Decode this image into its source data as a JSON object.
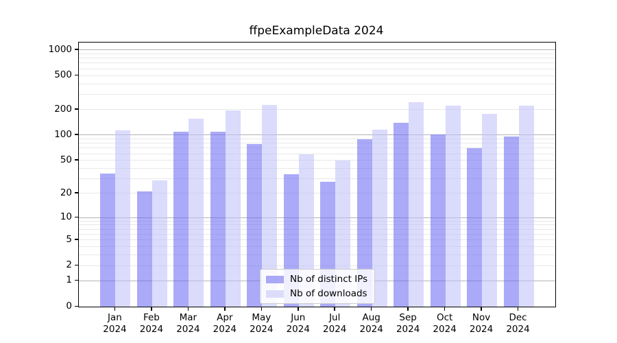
{
  "chart_data": {
    "type": "bar",
    "title": "ffpeExampleData 2024",
    "categories": [
      "Jan",
      "Feb",
      "Mar",
      "Apr",
      "May",
      "Jun",
      "Jul",
      "Aug",
      "Sep",
      "Oct",
      "Nov",
      "Dec"
    ],
    "x_tick_second_line": "2024",
    "series": [
      {
        "name": "Nb of distinct IPs",
        "fill": "rgba(100,100,242,0.55)",
        "swatch_color": "#a9a9f6",
        "values": [
          35,
          21,
          110,
          110,
          79,
          34,
          28,
          90,
          140,
          101,
          70,
          97
        ]
      },
      {
        "name": "Nb of downloads",
        "fill": "rgba(190,190,250,0.55)",
        "swatch_color": "#dcdcfa",
        "values": [
          114,
          29,
          155,
          195,
          225,
          59,
          50,
          115,
          245,
          220,
          178,
          223
        ]
      }
    ],
    "scale": "log1p",
    "ylim": [
      0,
      1215
    ],
    "y_ticks": [
      0,
      1,
      2,
      5,
      10,
      20,
      50,
      100,
      200,
      500,
      1000
    ],
    "grid": true,
    "legend_position": "lower center",
    "colors": {
      "major_grid": "#b3b3b3",
      "minor_grid": "#e8e8e8",
      "axis": "#000000",
      "background": "#ffffff"
    }
  }
}
